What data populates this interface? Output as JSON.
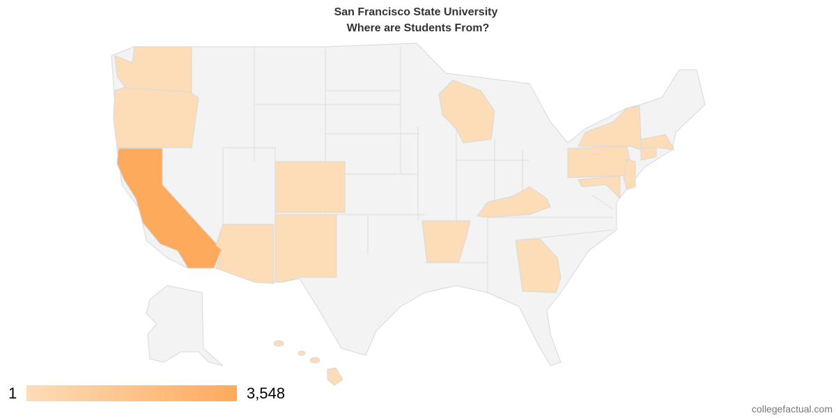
{
  "title": "San Francisco State University",
  "subtitle": "Where are Students From?",
  "legend": {
    "min": 1,
    "max": {
      "value": 3548,
      "label": "3,548"
    },
    "low_color": "#fddcb8",
    "high_color": "#fdaa5c"
  },
  "none_color": "#f3f3f3",
  "source": "collegefactual.com"
}
